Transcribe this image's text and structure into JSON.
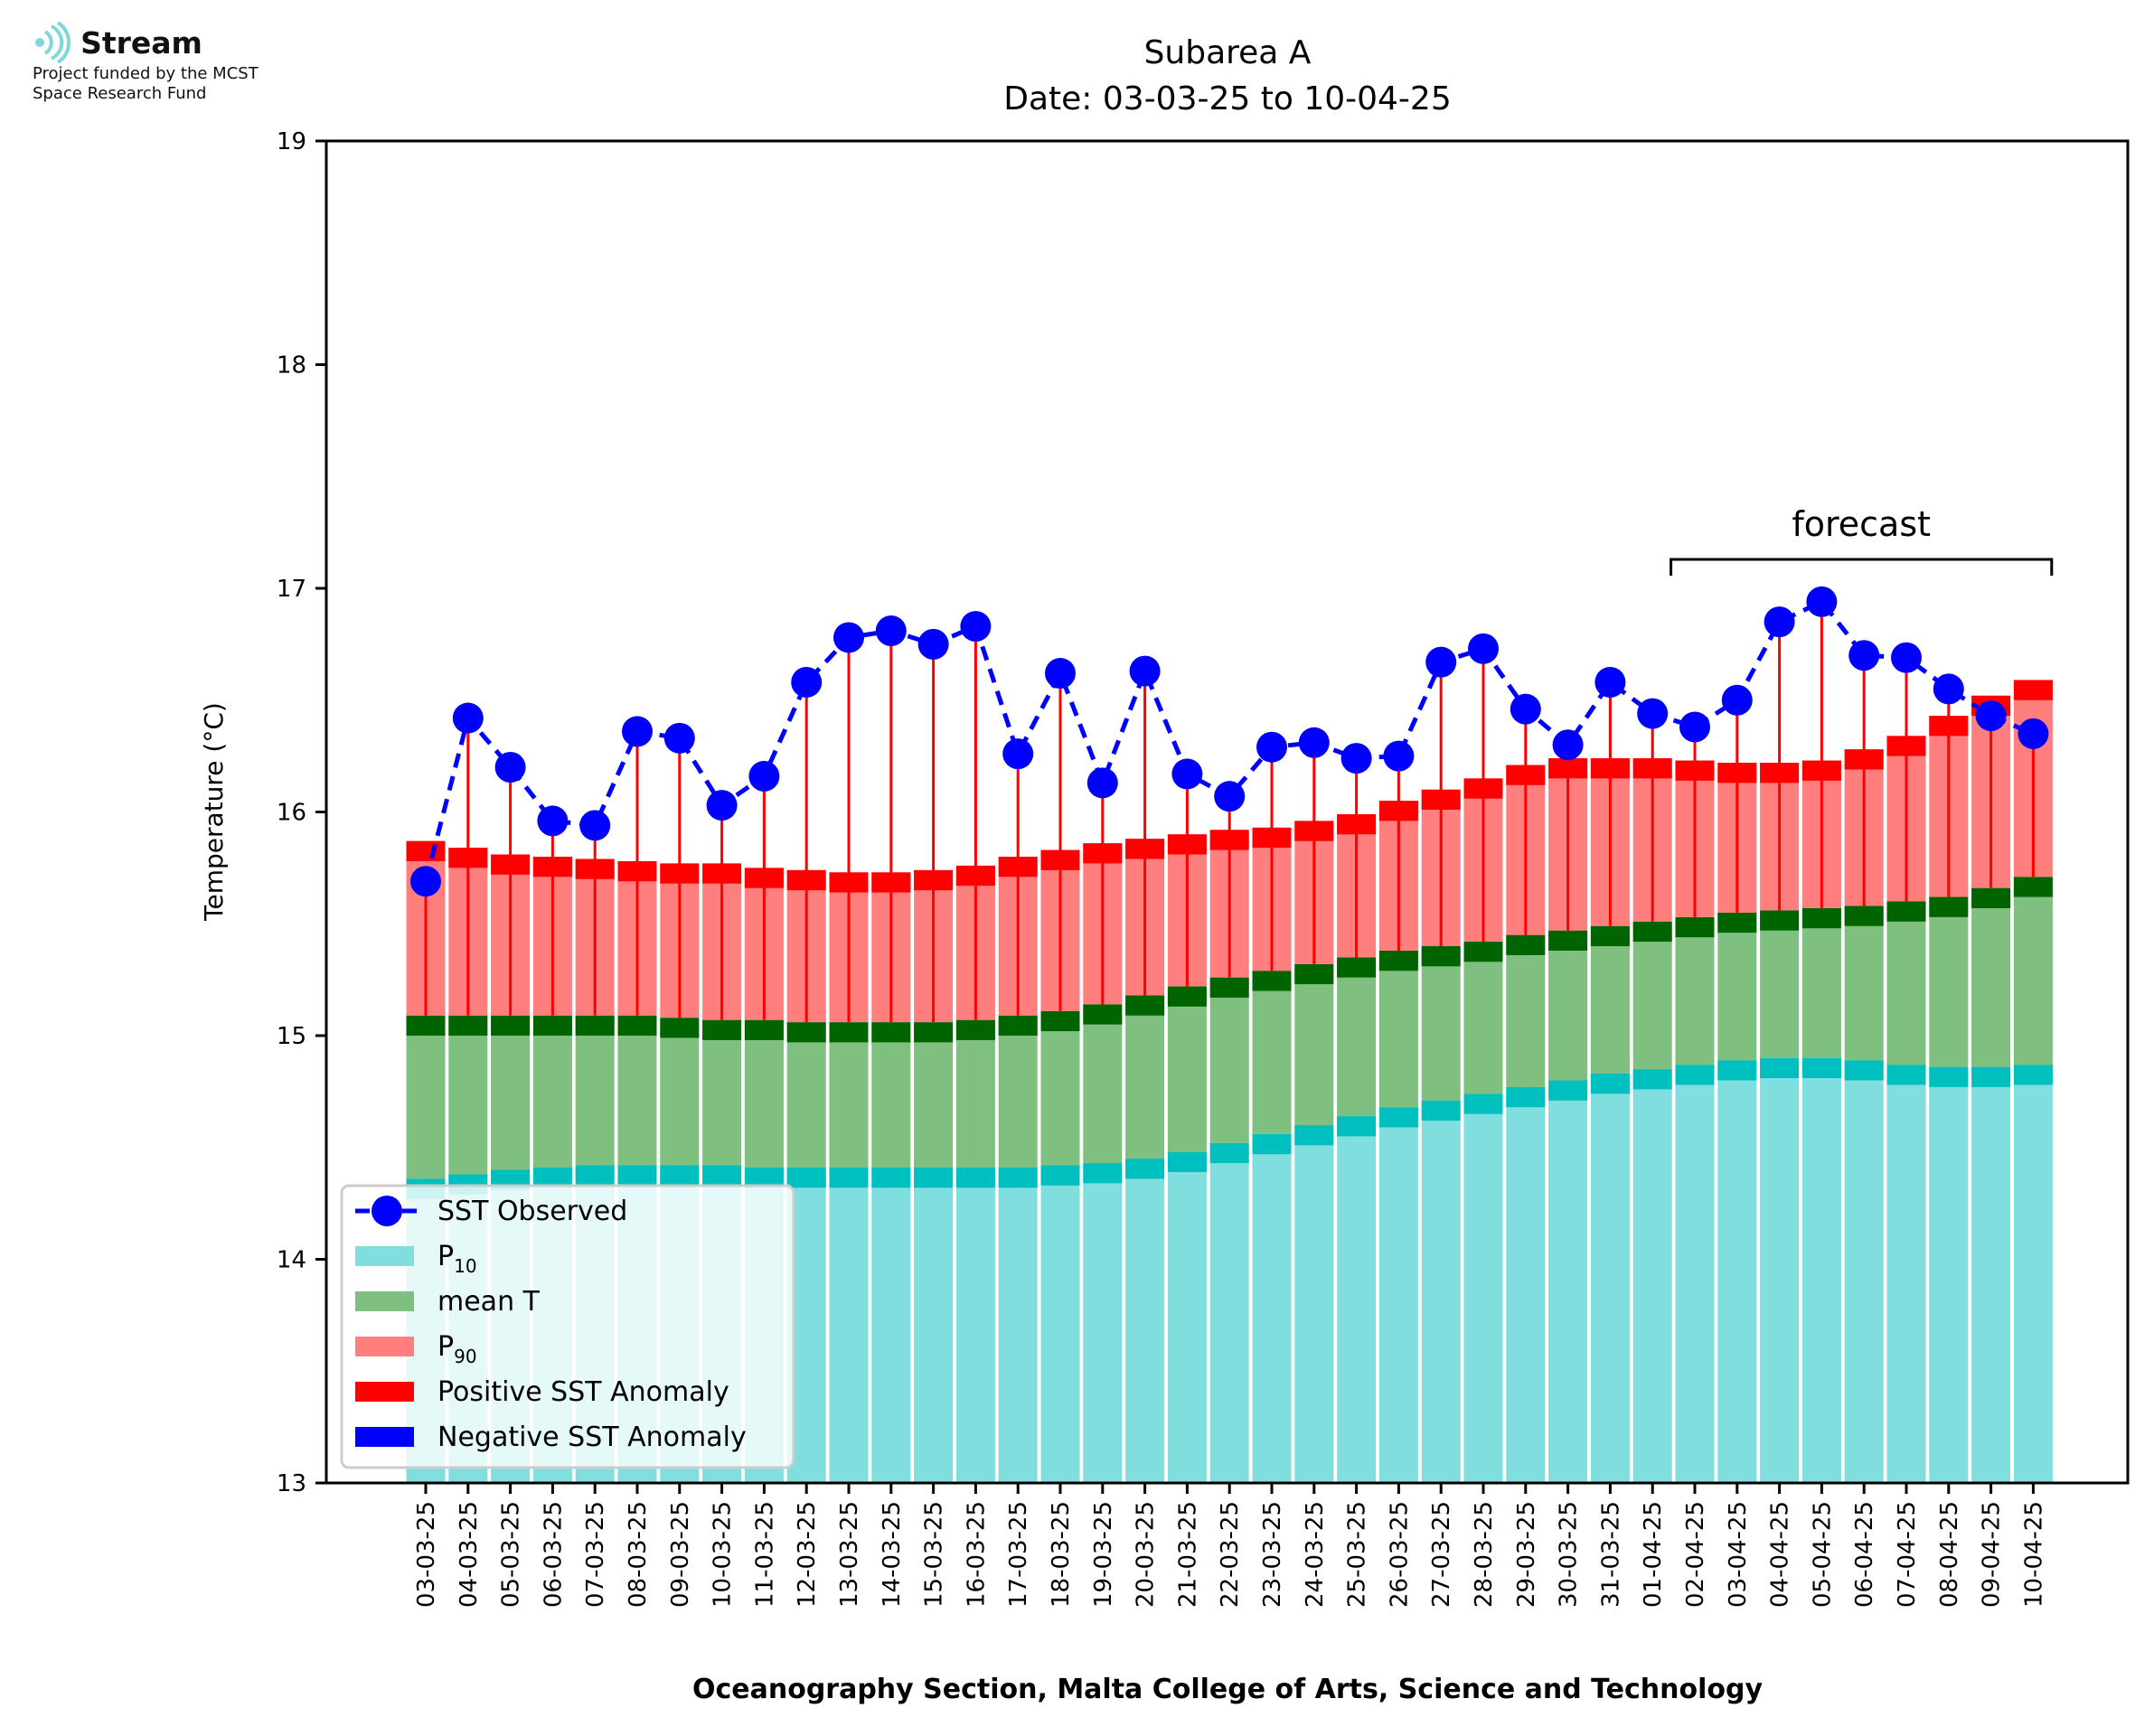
{
  "logo": {
    "brand": "Stream",
    "tagline_1": "Project funded by the MCST",
    "tagline_2": "Space Research Fund"
  },
  "colors": {
    "p10": "#80DEDE",
    "p10_band": "#00BFBF",
    "mean": "#7FBF7F",
    "mean_band": "#006400",
    "p90": "#FF7F7F",
    "p90_band": "#FF0000",
    "observed": "#0000FF",
    "anomaly_positive": "#FF0000",
    "anomaly_negative": "#0000FF",
    "logo_accent": "#7FD8D8"
  },
  "chart_data": {
    "type": "bar",
    "title": "Subarea A",
    "subtitle": "Date: 03-03-25 to 10-04-25",
    "xlabel": "Oceanography Section, Malta College of Arts, Science and Technology",
    "ylabel": "Temperature (°C)",
    "ylim": [
      13,
      19
    ],
    "yticks": [
      13,
      14,
      15,
      16,
      17,
      18,
      19
    ],
    "grid": false,
    "legend_position": "lower-left",
    "categories": [
      "03-03-25",
      "04-03-25",
      "05-03-25",
      "06-03-25",
      "07-03-25",
      "08-03-25",
      "09-03-25",
      "10-03-25",
      "11-03-25",
      "12-03-25",
      "13-03-25",
      "14-03-25",
      "15-03-25",
      "16-03-25",
      "17-03-25",
      "18-03-25",
      "19-03-25",
      "20-03-25",
      "21-03-25",
      "22-03-25",
      "23-03-25",
      "24-03-25",
      "25-03-25",
      "26-03-25",
      "27-03-25",
      "28-03-25",
      "29-03-25",
      "30-03-25",
      "31-03-25",
      "01-04-25",
      "02-04-25",
      "03-04-25",
      "04-04-25",
      "05-04-25",
      "06-04-25",
      "07-04-25",
      "08-04-25",
      "09-04-25",
      "10-04-25"
    ],
    "series": [
      {
        "name": "P10",
        "values": [
          14.36,
          14.38,
          14.4,
          14.41,
          14.42,
          14.42,
          14.42,
          14.42,
          14.41,
          14.41,
          14.41,
          14.41,
          14.41,
          14.41,
          14.41,
          14.42,
          14.43,
          14.45,
          14.48,
          14.52,
          14.56,
          14.6,
          14.64,
          14.68,
          14.71,
          14.74,
          14.77,
          14.8,
          14.83,
          14.85,
          14.87,
          14.89,
          14.9,
          14.9,
          14.89,
          14.87,
          14.86,
          14.86,
          14.87
        ]
      },
      {
        "name": "mean T",
        "values": [
          15.09,
          15.09,
          15.09,
          15.09,
          15.09,
          15.09,
          15.08,
          15.07,
          15.07,
          15.06,
          15.06,
          15.06,
          15.06,
          15.07,
          15.09,
          15.11,
          15.14,
          15.18,
          15.22,
          15.26,
          15.29,
          15.32,
          15.35,
          15.38,
          15.4,
          15.42,
          15.45,
          15.47,
          15.49,
          15.51,
          15.53,
          15.55,
          15.56,
          15.57,
          15.58,
          15.6,
          15.62,
          15.66,
          15.71
        ]
      },
      {
        "name": "P90",
        "values": [
          15.87,
          15.84,
          15.81,
          15.8,
          15.79,
          15.78,
          15.77,
          15.77,
          15.75,
          15.74,
          15.73,
          15.73,
          15.74,
          15.76,
          15.8,
          15.83,
          15.86,
          15.88,
          15.9,
          15.92,
          15.93,
          15.96,
          15.99,
          16.05,
          16.1,
          16.15,
          16.21,
          16.24,
          16.24,
          16.24,
          16.23,
          16.22,
          16.22,
          16.23,
          16.28,
          16.34,
          16.43,
          16.52,
          16.59
        ]
      },
      {
        "name": "SST Observed",
        "values": [
          15.69,
          16.42,
          16.2,
          15.96,
          15.94,
          16.36,
          16.33,
          16.03,
          16.16,
          16.58,
          16.78,
          16.81,
          16.75,
          16.83,
          16.26,
          16.62,
          16.13,
          16.63,
          16.17,
          16.07,
          16.29,
          16.31,
          16.24,
          16.25,
          16.67,
          16.73,
          16.46,
          16.3,
          16.58,
          16.44,
          16.38,
          16.5,
          16.85,
          16.94,
          16.7,
          16.69,
          16.55,
          16.43,
          16.35
        ]
      }
    ],
    "annotations": [
      {
        "text": "forecast",
        "from": "02-04-25",
        "to": "10-04-25"
      }
    ],
    "legend": [
      {
        "key": "observed",
        "label": "SST Observed",
        "sub": ""
      },
      {
        "key": "p10",
        "label": "P",
        "sub": "10"
      },
      {
        "key": "mean",
        "label": "mean T",
        "sub": ""
      },
      {
        "key": "p90",
        "label": "P",
        "sub": "90"
      },
      {
        "key": "anomaly_positive",
        "label": "Positive SST Anomaly",
        "sub": ""
      },
      {
        "key": "anomaly_negative",
        "label": "Negative SST Anomaly",
        "sub": ""
      }
    ]
  }
}
